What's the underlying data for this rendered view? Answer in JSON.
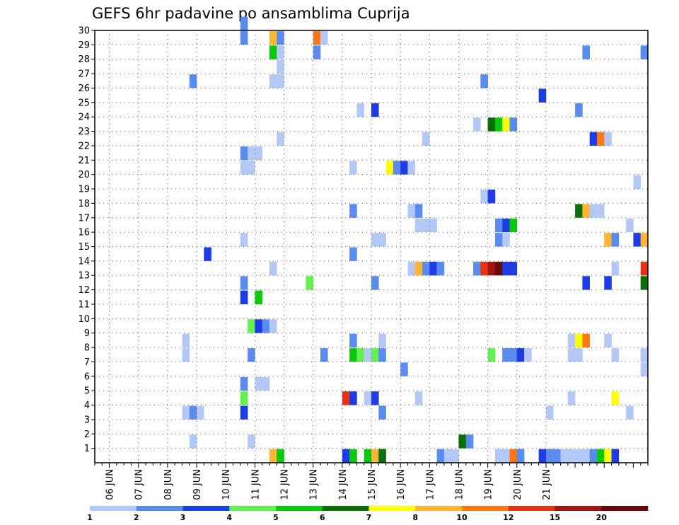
{
  "chart_data": {
    "type": "heatmap",
    "title": "GEFS 6hr padavine po ansamblima Cuprija",
    "xlabel": "",
    "ylabel": "",
    "x_tick_labels": [
      "06 JUN",
      "07 JUN",
      "08 JUN",
      "09 JUN",
      "10 JUN",
      "11 JUN",
      "12 JUN",
      "13 JUN",
      "14 JUN",
      "15 JUN",
      "16 JUN",
      "17 JUN",
      "18 JUN",
      "19 JUN",
      "20 JUN",
      "21 JUN"
    ],
    "y_tick_labels": [
      "1",
      "2",
      "3",
      "4",
      "5",
      "6",
      "7",
      "8",
      "9",
      "10",
      "11",
      "12",
      "13",
      "14",
      "15",
      "16",
      "17",
      "18",
      "19",
      "20",
      "21",
      "22",
      "23",
      "24",
      "25",
      "26",
      "27",
      "28",
      "29",
      "30"
    ],
    "ylim": [
      0,
      30
    ],
    "time_step_hours": 6,
    "grid": "dotted",
    "legend": {
      "placement": "bottom",
      "labels": [
        "1",
        "2",
        "3",
        "4",
        "5",
        "6",
        "7",
        "8",
        "10",
        "12",
        "15",
        "20"
      ],
      "colors": [
        "#b4c8f8",
        "#5a8cf0",
        "#1e3ce6",
        "#64f050",
        "#0ac80a",
        "#0a6e0a",
        "#ffff0a",
        "#ffb432",
        "#ff7814",
        "#e63214",
        "#a01414",
        "#640a0a"
      ]
    },
    "cells": [
      {
        "step": 20,
        "member": 29,
        "level": 2
      },
      {
        "step": 20,
        "member": 30,
        "level": 2
      },
      {
        "step": 24,
        "member": 29,
        "level": 8
      },
      {
        "step": 25,
        "member": 29,
        "level": 2
      },
      {
        "step": 24,
        "member": 28,
        "level": 5
      },
      {
        "step": 25,
        "member": 28,
        "level": 1
      },
      {
        "step": 25,
        "member": 27,
        "level": 1
      },
      {
        "step": 24,
        "member": 26,
        "level": 1
      },
      {
        "step": 25,
        "member": 26,
        "level": 1
      },
      {
        "step": 30,
        "member": 29,
        "level": 10
      },
      {
        "step": 31,
        "member": 29,
        "level": 1
      },
      {
        "step": 30,
        "member": 28,
        "level": 2
      },
      {
        "step": 13,
        "member": 26,
        "level": 2
      },
      {
        "step": 53,
        "member": 26,
        "level": 2
      },
      {
        "step": 67,
        "member": 28,
        "level": 2
      },
      {
        "step": 75,
        "member": 28,
        "level": 2
      },
      {
        "step": 61,
        "member": 25,
        "level": 3
      },
      {
        "step": 36,
        "member": 24,
        "level": 1
      },
      {
        "step": 38,
        "member": 24,
        "level": 3
      },
      {
        "step": 66,
        "member": 24,
        "level": 2
      },
      {
        "step": 52,
        "member": 23,
        "level": 1
      },
      {
        "step": 54,
        "member": 23,
        "level": 6
      },
      {
        "step": 55,
        "member": 23,
        "level": 5
      },
      {
        "step": 56,
        "member": 23,
        "level": 7
      },
      {
        "step": 57,
        "member": 23,
        "level": 2
      },
      {
        "step": 25,
        "member": 22,
        "level": 1
      },
      {
        "step": 45,
        "member": 22,
        "level": 1
      },
      {
        "step": 68,
        "member": 22,
        "level": 3
      },
      {
        "step": 69,
        "member": 22,
        "level": 10
      },
      {
        "step": 70,
        "member": 22,
        "level": 1
      },
      {
        "step": 20,
        "member": 21,
        "level": 2
      },
      {
        "step": 21,
        "member": 21,
        "level": 1
      },
      {
        "step": 22,
        "member": 21,
        "level": 1
      },
      {
        "step": 20,
        "member": 20,
        "level": 1
      },
      {
        "step": 21,
        "member": 20,
        "level": 1
      },
      {
        "step": 35,
        "member": 20,
        "level": 1
      },
      {
        "step": 40,
        "member": 20,
        "level": 7
      },
      {
        "step": 41,
        "member": 20,
        "level": 2
      },
      {
        "step": 42,
        "member": 20,
        "level": 3
      },
      {
        "step": 43,
        "member": 20,
        "level": 1
      },
      {
        "step": 74,
        "member": 19,
        "level": 1
      },
      {
        "step": 53,
        "member": 18,
        "level": 1
      },
      {
        "step": 54,
        "member": 18,
        "level": 3
      },
      {
        "step": 35,
        "member": 17,
        "level": 2
      },
      {
        "step": 43,
        "member": 17,
        "level": 1
      },
      {
        "step": 44,
        "member": 17,
        "level": 2
      },
      {
        "step": 66,
        "member": 17,
        "level": 6
      },
      {
        "step": 67,
        "member": 17,
        "level": 8
      },
      {
        "step": 68,
        "member": 17,
        "level": 1
      },
      {
        "step": 69,
        "member": 17,
        "level": 1
      },
      {
        "step": 44,
        "member": 16,
        "level": 1
      },
      {
        "step": 45,
        "member": 16,
        "level": 1
      },
      {
        "step": 46,
        "member": 16,
        "level": 1
      },
      {
        "step": 55,
        "member": 16,
        "level": 2
      },
      {
        "step": 56,
        "member": 16,
        "level": 3
      },
      {
        "step": 57,
        "member": 16,
        "level": 5
      },
      {
        "step": 73,
        "member": 16,
        "level": 1
      },
      {
        "step": 20,
        "member": 15,
        "level": 1
      },
      {
        "step": 38,
        "member": 15,
        "level": 1
      },
      {
        "step": 39,
        "member": 15,
        "level": 1
      },
      {
        "step": 55,
        "member": 15,
        "level": 2
      },
      {
        "step": 56,
        "member": 15,
        "level": 1
      },
      {
        "step": 70,
        "member": 15,
        "level": 8
      },
      {
        "step": 71,
        "member": 15,
        "level": 2
      },
      {
        "step": 74,
        "member": 15,
        "level": 3
      },
      {
        "step": 75,
        "member": 15,
        "level": 8
      },
      {
        "step": 15,
        "member": 14,
        "level": 3
      },
      {
        "step": 35,
        "member": 14,
        "level": 2
      },
      {
        "step": 24,
        "member": 13,
        "level": 1
      },
      {
        "step": 43,
        "member": 13,
        "level": 1
      },
      {
        "step": 44,
        "member": 13,
        "level": 8
      },
      {
        "step": 45,
        "member": 13,
        "level": 2
      },
      {
        "step": 46,
        "member": 13,
        "level": 3
      },
      {
        "step": 47,
        "member": 13,
        "level": 2
      },
      {
        "step": 52,
        "member": 13,
        "level": 2
      },
      {
        "step": 53,
        "member": 13,
        "level": 12
      },
      {
        "step": 54,
        "member": 13,
        "level": 15
      },
      {
        "step": 55,
        "member": 13,
        "level": 20
      },
      {
        "step": 56,
        "member": 13,
        "level": 3
      },
      {
        "step": 57,
        "member": 13,
        "level": 3
      },
      {
        "step": 71,
        "member": 13,
        "level": 1
      },
      {
        "step": 75,
        "member": 13,
        "level": 12
      },
      {
        "step": 20,
        "member": 12,
        "level": 2
      },
      {
        "step": 29,
        "member": 12,
        "level": 4
      },
      {
        "step": 38,
        "member": 12,
        "level": 2
      },
      {
        "step": 67,
        "member": 12,
        "level": 3
      },
      {
        "step": 70,
        "member": 12,
        "level": 3
      },
      {
        "step": 75,
        "member": 12,
        "level": 6
      },
      {
        "step": 20,
        "member": 11,
        "level": 3
      },
      {
        "step": 22,
        "member": 11,
        "level": 5
      },
      {
        "step": 21,
        "member": 9,
        "level": 4
      },
      {
        "step": 22,
        "member": 9,
        "level": 3
      },
      {
        "step": 23,
        "member": 9,
        "level": 2
      },
      {
        "step": 24,
        "member": 9,
        "level": 1
      },
      {
        "step": 12,
        "member": 8,
        "level": 1
      },
      {
        "step": 35,
        "member": 8,
        "level": 2
      },
      {
        "step": 39,
        "member": 8,
        "level": 1
      },
      {
        "step": 65,
        "member": 8,
        "level": 1
      },
      {
        "step": 66,
        "member": 8,
        "level": 7
      },
      {
        "step": 67,
        "member": 8,
        "level": 10
      },
      {
        "step": 70,
        "member": 8,
        "level": 1
      },
      {
        "step": 12,
        "member": 7,
        "level": 1
      },
      {
        "step": 21,
        "member": 7,
        "level": 2
      },
      {
        "step": 31,
        "member": 7,
        "level": 2
      },
      {
        "step": 35,
        "member": 7,
        "level": 5
      },
      {
        "step": 36,
        "member": 7,
        "level": 4
      },
      {
        "step": 37,
        "member": 7,
        "level": 1
      },
      {
        "step": 38,
        "member": 7,
        "level": 4
      },
      {
        "step": 39,
        "member": 7,
        "level": 2
      },
      {
        "step": 54,
        "member": 7,
        "level": 4
      },
      {
        "step": 56,
        "member": 7,
        "level": 2
      },
      {
        "step": 57,
        "member": 7,
        "level": 2
      },
      {
        "step": 58,
        "member": 7,
        "level": 3
      },
      {
        "step": 59,
        "member": 7,
        "level": 1
      },
      {
        "step": 65,
        "member": 7,
        "level": 1
      },
      {
        "step": 66,
        "member": 7,
        "level": 1
      },
      {
        "step": 71,
        "member": 7,
        "level": 1
      },
      {
        "step": 75,
        "member": 7,
        "level": 1
      },
      {
        "step": 42,
        "member": 6,
        "level": 2
      },
      {
        "step": 75,
        "member": 6,
        "level": 1
      },
      {
        "step": 20,
        "member": 5,
        "level": 2
      },
      {
        "step": 22,
        "member": 5,
        "level": 1
      },
      {
        "step": 23,
        "member": 5,
        "level": 1
      },
      {
        "step": 20,
        "member": 4,
        "level": 4
      },
      {
        "step": 34,
        "member": 4,
        "level": 12
      },
      {
        "step": 35,
        "member": 4,
        "level": 3
      },
      {
        "step": 37,
        "member": 4,
        "level": 1
      },
      {
        "step": 38,
        "member": 4,
        "level": 3
      },
      {
        "step": 44,
        "member": 4,
        "level": 1
      },
      {
        "step": 65,
        "member": 4,
        "level": 1
      },
      {
        "step": 71,
        "member": 4,
        "level": 7
      },
      {
        "step": 12,
        "member": 3,
        "level": 1
      },
      {
        "step": 13,
        "member": 3,
        "level": 2
      },
      {
        "step": 14,
        "member": 3,
        "level": 1
      },
      {
        "step": 20,
        "member": 3,
        "level": 3
      },
      {
        "step": 39,
        "member": 3,
        "level": 2
      },
      {
        "step": 62,
        "member": 3,
        "level": 1
      },
      {
        "step": 73,
        "member": 3,
        "level": 1
      },
      {
        "step": 13,
        "member": 1,
        "level": 1
      },
      {
        "step": 21,
        "member": 1,
        "level": 1
      },
      {
        "step": 50,
        "member": 1,
        "level": 6
      },
      {
        "step": 51,
        "member": 1,
        "level": 2
      },
      {
        "step": 24,
        "member": 0,
        "level": 8
      },
      {
        "step": 25,
        "member": 0,
        "level": 5
      },
      {
        "step": 34,
        "member": 0,
        "level": 3
      },
      {
        "step": 35,
        "member": 0,
        "level": 5
      },
      {
        "step": 37,
        "member": 0,
        "level": 5
      },
      {
        "step": 38,
        "member": 0,
        "level": 8
      },
      {
        "step": 39,
        "member": 0,
        "level": 6
      },
      {
        "step": 47,
        "member": 0,
        "level": 2
      },
      {
        "step": 48,
        "member": 0,
        "level": 1
      },
      {
        "step": 49,
        "member": 0,
        "level": 1
      },
      {
        "step": 55,
        "member": 0,
        "level": 1
      },
      {
        "step": 56,
        "member": 0,
        "level": 1
      },
      {
        "step": 57,
        "member": 0,
        "level": 10
      },
      {
        "step": 58,
        "member": 0,
        "level": 2
      },
      {
        "step": 61,
        "member": 0,
        "level": 3
      },
      {
        "step": 62,
        "member": 0,
        "level": 2
      },
      {
        "step": 63,
        "member": 0,
        "level": 2
      },
      {
        "step": 64,
        "member": 0,
        "level": 1
      },
      {
        "step": 65,
        "member": 0,
        "level": 1
      },
      {
        "step": 66,
        "member": 0,
        "level": 1
      },
      {
        "step": 67,
        "member": 0,
        "level": 1
      },
      {
        "step": 68,
        "member": 0,
        "level": 2
      },
      {
        "step": 69,
        "member": 0,
        "level": 5
      },
      {
        "step": 70,
        "member": 0,
        "level": 7
      },
      {
        "step": 71,
        "member": 0,
        "level": 3
      }
    ]
  }
}
